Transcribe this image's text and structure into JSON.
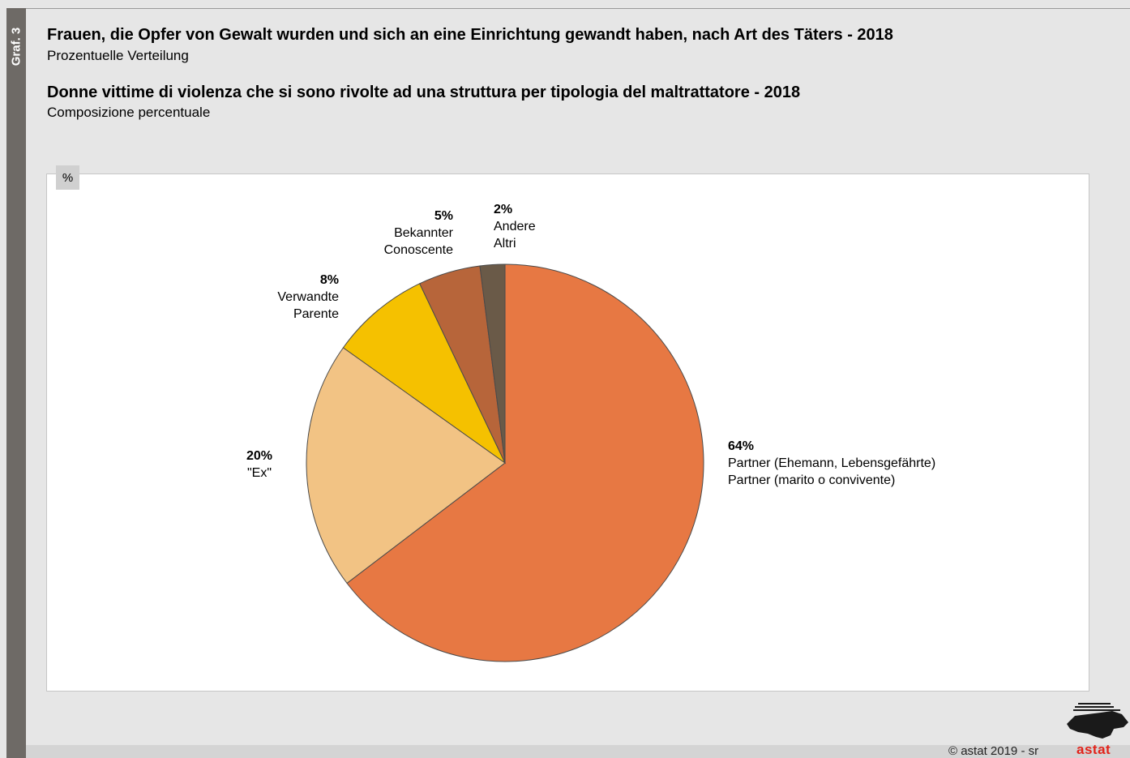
{
  "side_label": "Graf. 3",
  "header": {
    "title_de": "Frauen, die Opfer von Gewalt wurden und sich an eine Einrichtung gewandt haben, nach Art des Täters - 2018",
    "subtitle_de": "Prozentuelle Verteilung",
    "title_it": "Donne vittime di violenza che si sono rivolte ad una struttura per tipologia del maltrattatore - 2018",
    "subtitle_it": "Composizione percentuale"
  },
  "unit_label": "%",
  "chart_data": {
    "type": "pie",
    "unit": "%",
    "start_angle_deg": 0,
    "direction": "clockwise",
    "slices": [
      {
        "value": 64,
        "pct_label": "64%",
        "label_de": "Partner (Ehemann, Lebensgefährte)",
        "label_it": "Partner (marito o convivente)",
        "color": "#e77843"
      },
      {
        "value": 20,
        "pct_label": "20%",
        "label_de": "\"Ex\"",
        "label_it": "",
        "color": "#f2c384"
      },
      {
        "value": 8,
        "pct_label": "8%",
        "label_de": "Verwandte",
        "label_it": "Parente",
        "color": "#f5c100"
      },
      {
        "value": 5,
        "pct_label": "5%",
        "label_de": "Bekannter",
        "label_it": "Conoscente",
        "color": "#b7653a"
      },
      {
        "value": 2,
        "pct_label": "2%",
        "label_de": "Andere",
        "label_it": "Altri",
        "color": "#6a5a48"
      }
    ]
  },
  "footer": {
    "copyright": "© astat 2019 - sr",
    "logo_text": "astat"
  }
}
